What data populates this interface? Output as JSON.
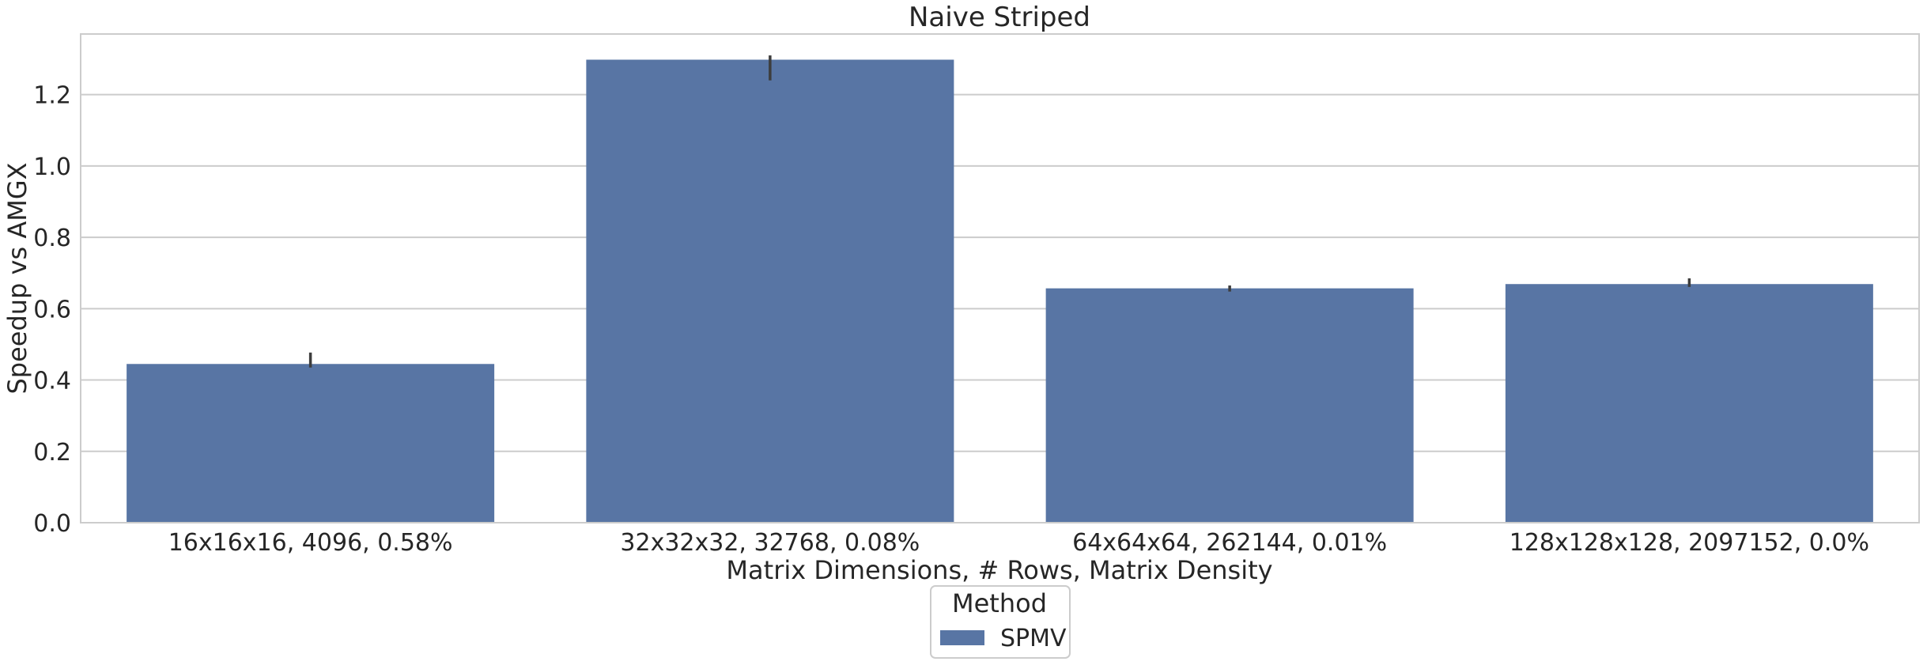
{
  "chart_data": {
    "type": "bar",
    "title": "Naive Striped",
    "xlabel": "Matrix Dimensions, # Rows, Matrix Density",
    "ylabel": "Speedup vs AMGX",
    "categories": [
      "16x16x16, 4096, 0.58%",
      "32x32x32, 32768, 0.08%",
      "64x64x64, 262144, 0.01%",
      "128x128x128, 2097152, 0.0%"
    ],
    "series": [
      {
        "name": "SPMV",
        "values": [
          0.445,
          1.298,
          0.657,
          0.669
        ],
        "error_low": [
          0.435,
          1.24,
          0.648,
          0.661
        ],
        "error_high": [
          0.477,
          1.31,
          0.665,
          0.685
        ],
        "color": "#5875a4"
      }
    ],
    "ylim": [
      0,
      1.37
    ],
    "yticks": [
      "0.0",
      "0.2",
      "0.4",
      "0.6",
      "0.8",
      "1.0",
      "1.2"
    ],
    "grid": true,
    "legend": {
      "title": "Method",
      "placement": "bottom-center"
    }
  }
}
